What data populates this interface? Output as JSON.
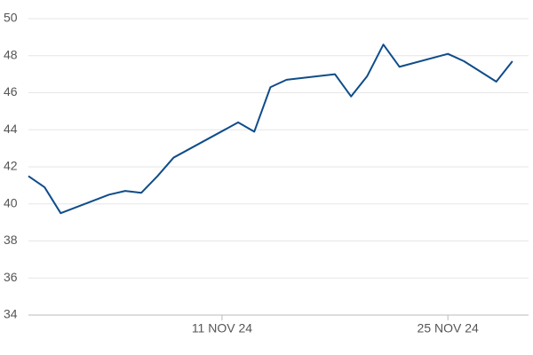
{
  "chart_data": {
    "type": "line",
    "x": [
      "2024-10-30",
      "2024-10-31",
      "2024-11-01",
      "2024-11-04",
      "2024-11-05",
      "2024-11-06",
      "2024-11-07",
      "2024-11-08",
      "2024-11-12",
      "2024-11-13",
      "2024-11-14",
      "2024-11-15",
      "2024-11-18",
      "2024-11-19",
      "2024-11-20",
      "2024-11-21",
      "2024-11-22",
      "2024-11-25",
      "2024-11-26",
      "2024-11-28",
      "2024-11-29"
    ],
    "series": [
      {
        "color": "#0f4c8a",
        "values": [
          41.5,
          40.9,
          39.5,
          40.5,
          40.7,
          40.6,
          41.5,
          42.5,
          44.4,
          43.9,
          46.3,
          46.7,
          47.0,
          45.8,
          46.9,
          48.6,
          47.4,
          48.1,
          47.7,
          46.6,
          47.7
        ]
      }
    ],
    "xlim": [
      "2024-10-30",
      "2024-11-30"
    ],
    "xticks": [
      {
        "value": "2024-11-11",
        "label": "11 NOV 24"
      },
      {
        "value": "2024-11-25",
        "label": "25 NOV 24"
      }
    ],
    "ylim": [
      34,
      50
    ],
    "yticks": [
      34,
      36,
      38,
      40,
      42,
      44,
      46,
      48,
      50
    ],
    "grid": true
  }
}
